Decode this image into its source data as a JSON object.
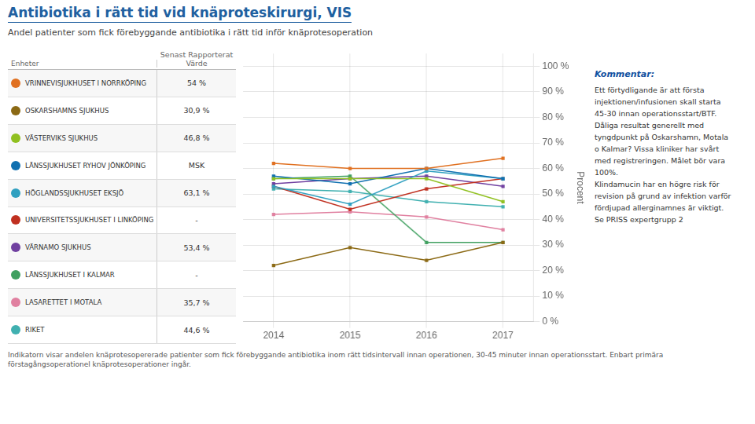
{
  "chart_data": {
    "type": "line",
    "title": "Antibiotika i rätt tid vid knäproteskirurgi, VIS",
    "subtitle": "Andel patienter som fick förebyggande antibiotika i rätt tid inför knäprotesoperation",
    "ylabel": "Procent",
    "x": [
      2014,
      2015,
      2016,
      2017
    ],
    "xlim": [
      2013.6,
      2017.4
    ],
    "xticks": [
      2014,
      2015,
      2016,
      2017
    ],
    "ylim": [
      0,
      105
    ],
    "yticks": [
      {
        "value": 0,
        "label": "0 %"
      },
      {
        "value": 10,
        "label": "10 %"
      },
      {
        "value": 20,
        "label": "20 %"
      },
      {
        "value": 30,
        "label": "30 %"
      },
      {
        "value": 40,
        "label": "40 %"
      },
      {
        "value": 50,
        "label": "50 %"
      },
      {
        "value": 60,
        "label": "60 %"
      },
      {
        "value": 70,
        "label": "70 %"
      },
      {
        "value": 80,
        "label": "80 %"
      },
      {
        "value": 90,
        "label": "90 %"
      },
      {
        "value": 100,
        "label": "100 %"
      }
    ],
    "grid": true,
    "marker": "square",
    "series": [
      {
        "name": "VRINNEVISJUKHUSET I NORRKÖPING",
        "color": "#E07020",
        "values": [
          62,
          60,
          60,
          64
        ]
      },
      {
        "name": "OSKARSHAMNS SJUKHUS",
        "color": "#8B6914",
        "values": [
          22,
          29,
          24,
          31
        ]
      },
      {
        "name": "VÄSTERVIKS SJUKHUS",
        "color": "#90C020",
        "values": [
          56,
          56,
          56,
          47
        ]
      },
      {
        "name": "LÄNSSJUKHUSET RYHOV JÖNKÖPING",
        "color": "#1070B0",
        "values": [
          57,
          54,
          60,
          56
        ]
      },
      {
        "name": "HÖGLANDSSJUKHUSET EKSJÖ",
        "color": "#30A0C0",
        "values": [
          53,
          46,
          59,
          56
        ]
      },
      {
        "name": "UNIVERSITETSSJUKHUSET I LINKÖPING",
        "color": "#C03020",
        "values": [
          53,
          44,
          52,
          56
        ]
      },
      {
        "name": "VÄRNAMO SJUKHUS",
        "color": "#7040A0",
        "values": [
          54,
          56,
          57,
          53
        ]
      },
      {
        "name": "LÄNSSJUKHUSET I KALMAR",
        "color": "#40A060",
        "values": [
          56,
          57,
          31,
          31
        ]
      },
      {
        "name": "LASARETTET I MOTALA",
        "color": "#E080A0",
        "values": [
          42,
          43,
          41,
          36
        ]
      },
      {
        "name": "RIKET",
        "color": "#40B0B0",
        "values": [
          52,
          51,
          47,
          45
        ]
      }
    ],
    "table": {
      "columns": [
        "Enheter",
        "Senast Rapporterat Värde"
      ],
      "latest_values": [
        "54 %",
        "30,9 %",
        "46,8 %",
        "MSK",
        "63,1 %",
        "-",
        "53,4 %",
        "-",
        "35,7 %",
        "44,6 %"
      ]
    },
    "comment": {
      "title": "Kommentar:",
      "lines": [
        "Ett förtydligande är att första",
        "injektionen/infusionen skall starta",
        "45-30 innan operationsstart/BTF.",
        "Dåliga resultat generellt med",
        "tyngdpunkt på Oskarshamn, Motala",
        "o Kalmar? Vissa kliniker har svårt",
        "med registreringen. Målet bör vara",
        "100%.",
        "Klindamucin har en högre risk för",
        "revision på grund av infektion varför",
        "fördjupad allerginamnes är viktigt.",
        "Se PRISS expertgrupp 2"
      ]
    },
    "footnotes": [
      "Indikatorn visar andelen knäprotesopererade patienter som fick förebyggande antibiotika inom rätt tidsintervall innan operationen, 30-45 minuter innan operationsstart. Enbart primära",
      "förstagångsoperationel knäprotesoperationer ingår."
    ]
  }
}
